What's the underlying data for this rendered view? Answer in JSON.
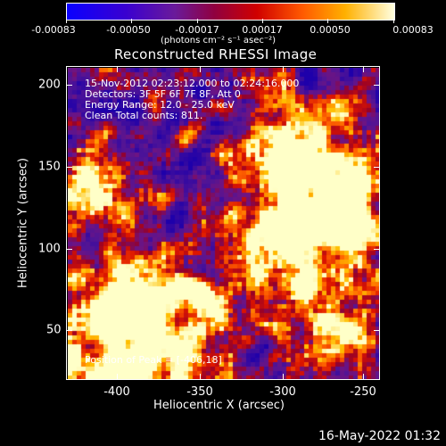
{
  "colorbar": {
    "tick_labels": [
      "-0.00083",
      "-0.00050",
      "-0.00017",
      "0.00017",
      "0.00050",
      "0.00083"
    ],
    "units_label": "(photons cm⁻² s⁻¹ asec⁻²)"
  },
  "title": "Reconstructed RHESSI Image",
  "info": {
    "line1": "15-Nov-2012 02:23:12.000 to 02:24:16.000",
    "line2": "Detectors: 3F 5F 6F 7F 8F, Att 0",
    "line3": "Energy Range: 12.0 - 25.0 keV",
    "line4": "Clean     Total counts: 811.",
    "peak": "Position of Peak = [-406,18]"
  },
  "axes": {
    "xlabel": "Heliocentric X (arcsec)",
    "ylabel": "Heliocentric Y (arcsec)",
    "xticks": [
      "-400",
      "-350",
      "-300",
      "-250"
    ],
    "yticks": [
      "50",
      "100",
      "150",
      "200"
    ]
  },
  "footer_date": "16-May-2022 01:32",
  "colors": {
    "background": "#000000",
    "foreground": "#ffffff"
  }
}
